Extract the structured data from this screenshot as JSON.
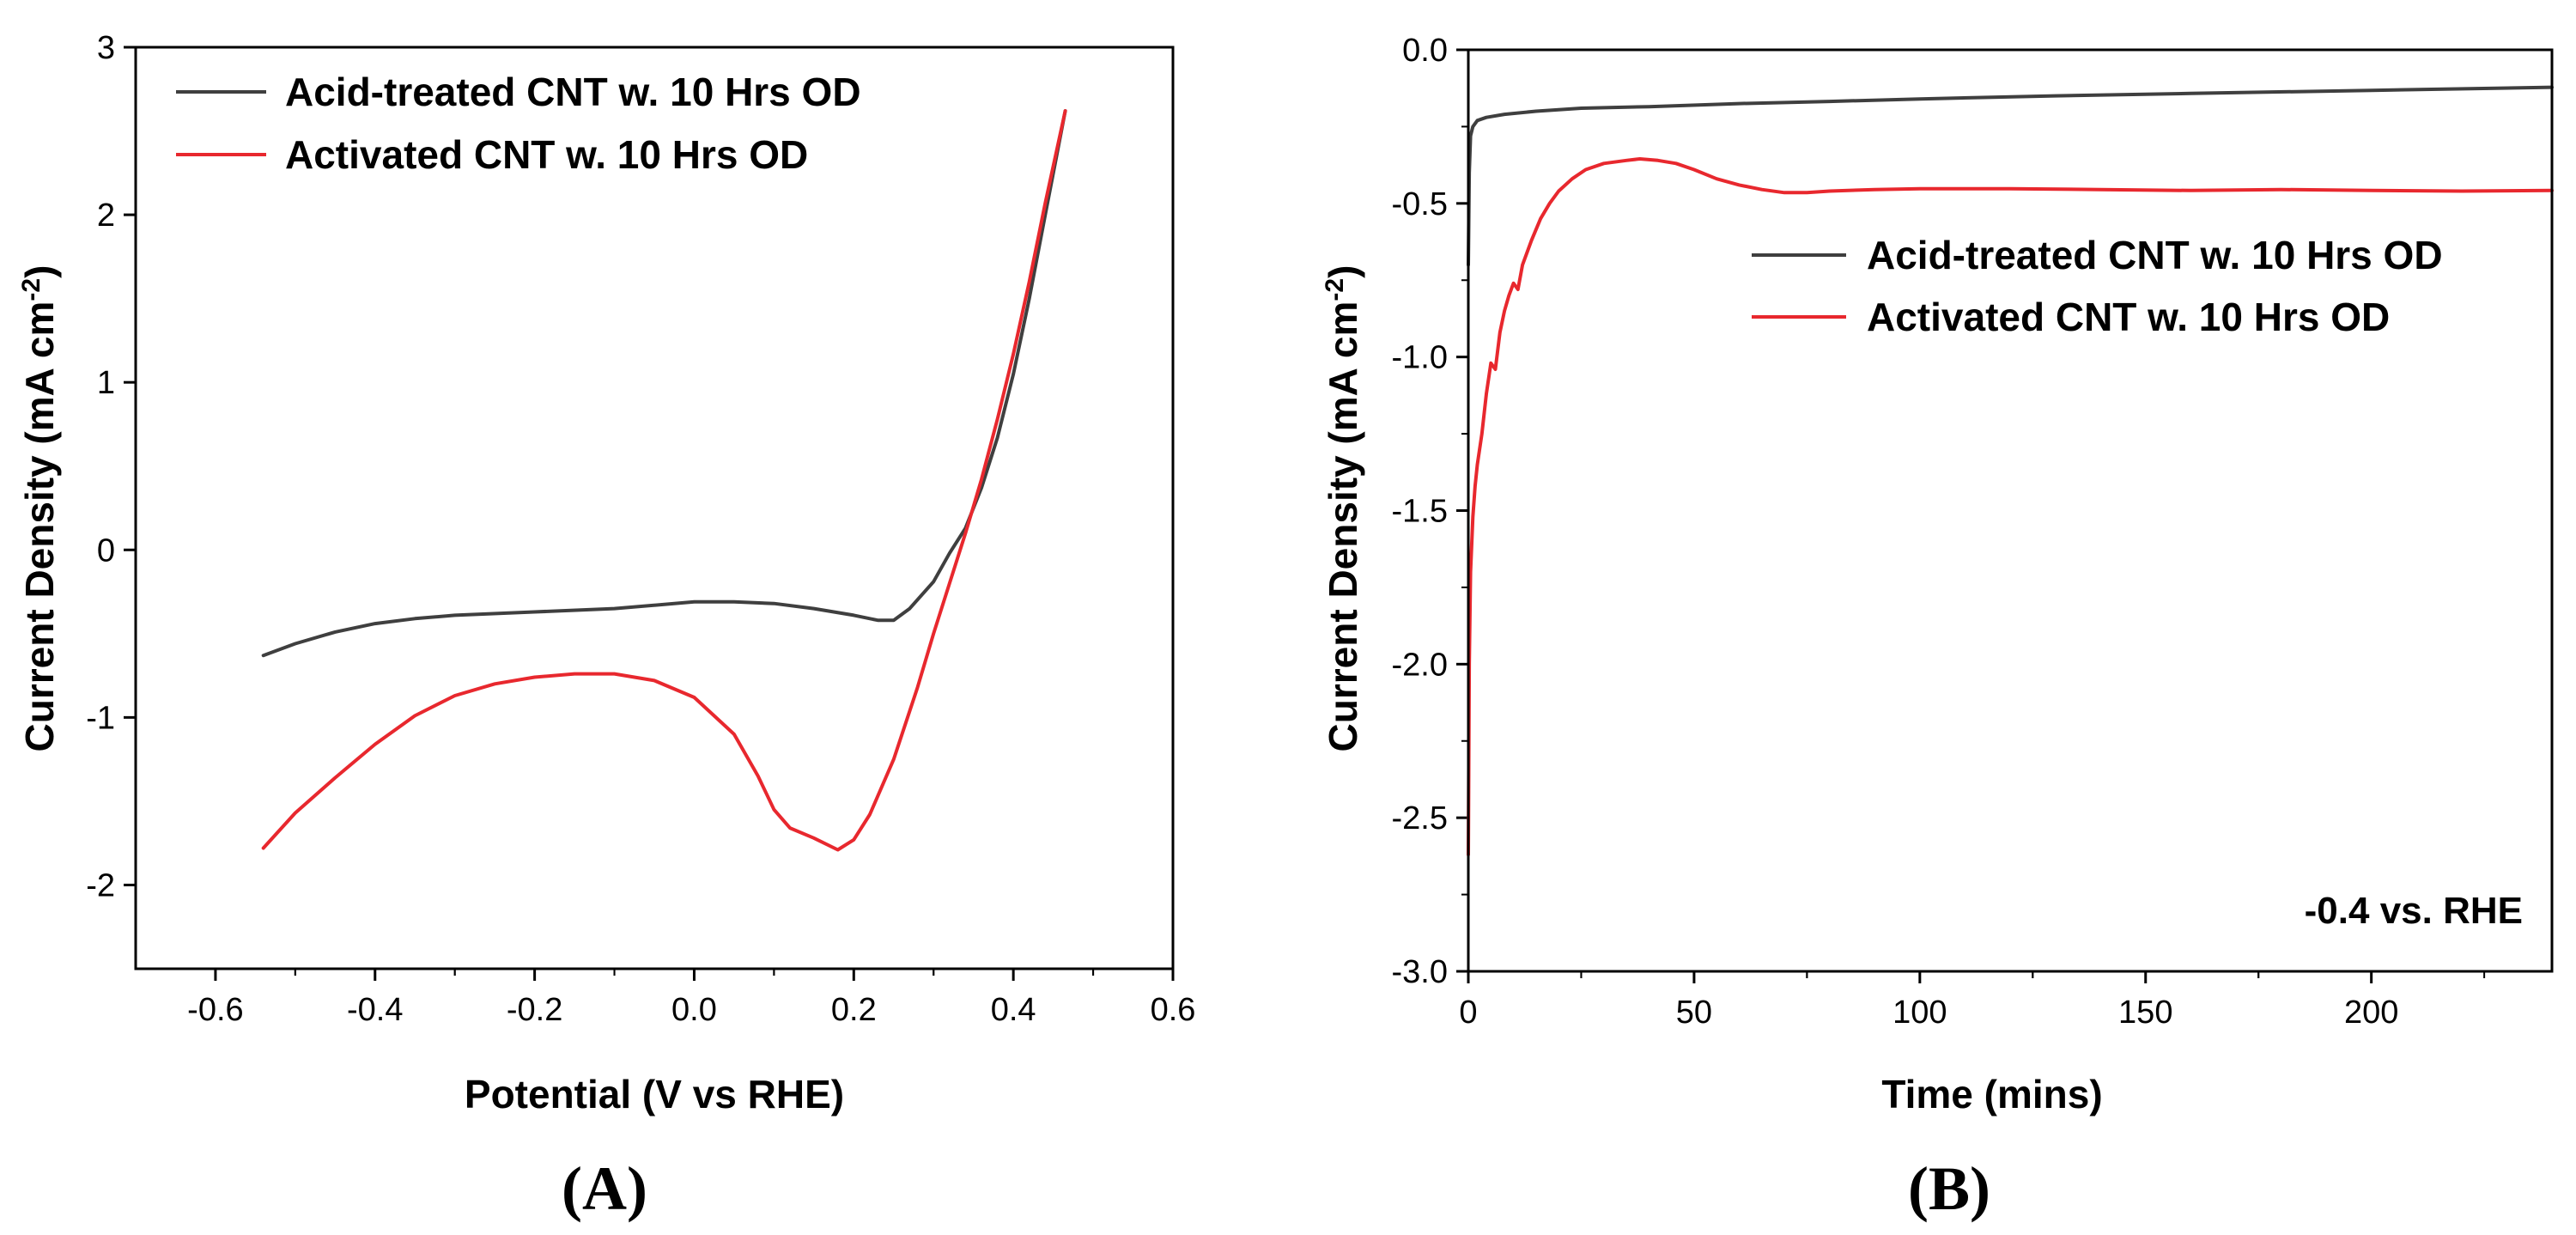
{
  "chart_data": [
    {
      "type": "line",
      "panel_label": "(A)",
      "title": "",
      "xlabel": "Potential (V vs RHE)",
      "ylabel": "Current Density (mA cm",
      "ylabel_sup": "-2",
      "ylabel_close": ")",
      "xlim": [
        -0.7,
        0.6
      ],
      "ylim": [
        -2.5,
        3
      ],
      "x_ticks": [
        -0.6,
        -0.4,
        -0.2,
        0.0,
        0.2,
        0.4,
        0.6
      ],
      "x_tick_labels": [
        "-0.6",
        "-0.4",
        "-0.2",
        "0.0",
        "0.2",
        "0.4",
        "0.6"
      ],
      "y_ticks": [
        -2,
        -1,
        0,
        1,
        2,
        3
      ],
      "y_tick_labels": [
        "-2",
        "-1",
        "0",
        "1",
        "2",
        "3"
      ],
      "legend_position": "top-left",
      "series": [
        {
          "name": "Acid-treated CNT w. 10 Hrs OD",
          "color": "#3f3f3f",
          "x": [
            -0.54,
            -0.5,
            -0.45,
            -0.4,
            -0.35,
            -0.3,
            -0.2,
            -0.1,
            0.0,
            0.05,
            0.1,
            0.15,
            0.2,
            0.23,
            0.25,
            0.27,
            0.3,
            0.32,
            0.34,
            0.36,
            0.38,
            0.4,
            0.42,
            0.44,
            0.465
          ],
          "y": [
            -0.63,
            -0.56,
            -0.49,
            -0.44,
            -0.41,
            -0.39,
            -0.37,
            -0.35,
            -0.31,
            -0.31,
            -0.32,
            -0.35,
            -0.39,
            -0.42,
            -0.42,
            -0.35,
            -0.19,
            -0.02,
            0.13,
            0.37,
            0.67,
            1.05,
            1.5,
            2.0,
            2.62
          ]
        },
        {
          "name": "Activated CNT w. 10 Hrs OD",
          "color": "#e8282e",
          "x": [
            -0.54,
            -0.5,
            -0.45,
            -0.4,
            -0.35,
            -0.3,
            -0.25,
            -0.2,
            -0.15,
            -0.1,
            -0.05,
            0.0,
            0.05,
            0.08,
            0.1,
            0.12,
            0.15,
            0.18,
            0.2,
            0.22,
            0.25,
            0.28,
            0.3,
            0.32,
            0.34,
            0.36,
            0.38,
            0.4,
            0.42,
            0.44,
            0.465
          ],
          "y": [
            -1.78,
            -1.57,
            -1.36,
            -1.16,
            -0.99,
            -0.87,
            -0.8,
            -0.76,
            -0.74,
            -0.74,
            -0.78,
            -0.88,
            -1.1,
            -1.35,
            -1.55,
            -1.66,
            -1.72,
            -1.79,
            -1.73,
            -1.58,
            -1.25,
            -0.82,
            -0.5,
            -0.2,
            0.1,
            0.42,
            0.78,
            1.17,
            1.6,
            2.07,
            2.62
          ]
        }
      ]
    },
    {
      "type": "line",
      "panel_label": "(B)",
      "title": "",
      "xlabel": "Time (mins)",
      "ylabel": "Current Density (mA cm",
      "ylabel_sup": "-2",
      "ylabel_close": ")",
      "xlim": [
        0,
        240
      ],
      "ylim": [
        -3.0,
        0.0
      ],
      "x_ticks": [
        0,
        50,
        100,
        150,
        200
      ],
      "x_tick_labels": [
        "0",
        "50",
        "100",
        "150",
        "200"
      ],
      "y_ticks": [
        -3.0,
        -2.5,
        -2.0,
        -1.5,
        -1.0,
        -0.5,
        0.0
      ],
      "y_tick_labels": [
        "-3.0",
        "-2.5",
        "-2.0",
        "-1.5",
        "-1.0",
        "-0.5",
        "0.0"
      ],
      "legend_position": "top-right",
      "annotation": "-0.4 vs. RHE",
      "series": [
        {
          "name": "Acid-treated CNT w. 10 Hrs OD",
          "color": "#3f3f3f",
          "x": [
            0,
            0.2,
            0.5,
            1,
            2,
            4,
            8,
            15,
            25,
            40,
            60,
            80,
            100,
            130,
            160,
            200,
            240
          ],
          "y": [
            -0.7,
            -0.4,
            -0.28,
            -0.25,
            -0.23,
            -0.22,
            -0.21,
            -0.2,
            -0.19,
            -0.185,
            -0.175,
            -0.168,
            -0.16,
            -0.15,
            -0.142,
            -0.132,
            -0.122
          ]
        },
        {
          "name": "Activated CNT w. 10 Hrs OD",
          "color": "#e8282e",
          "x": [
            0,
            0.2,
            0.5,
            1,
            1.5,
            2,
            3,
            4,
            5,
            6,
            7,
            8,
            9,
            10,
            11,
            12,
            14,
            16,
            18,
            20,
            23,
            26,
            30,
            35,
            38,
            42,
            46,
            50,
            55,
            60,
            65,
            70,
            75,
            80,
            90,
            100,
            120,
            140,
            160,
            180,
            200,
            220,
            240
          ],
          "y": [
            -2.62,
            -2.0,
            -1.7,
            -1.52,
            -1.42,
            -1.35,
            -1.25,
            -1.12,
            -1.02,
            -1.04,
            -0.92,
            -0.85,
            -0.8,
            -0.76,
            -0.78,
            -0.7,
            -0.62,
            -0.55,
            -0.5,
            -0.46,
            -0.42,
            -0.39,
            -0.37,
            -0.36,
            -0.355,
            -0.36,
            -0.37,
            -0.39,
            -0.42,
            -0.44,
            -0.455,
            -0.465,
            -0.465,
            -0.46,
            -0.455,
            -0.452,
            -0.452,
            -0.455,
            -0.458,
            -0.455,
            -0.458,
            -0.46,
            -0.458
          ]
        }
      ]
    }
  ]
}
